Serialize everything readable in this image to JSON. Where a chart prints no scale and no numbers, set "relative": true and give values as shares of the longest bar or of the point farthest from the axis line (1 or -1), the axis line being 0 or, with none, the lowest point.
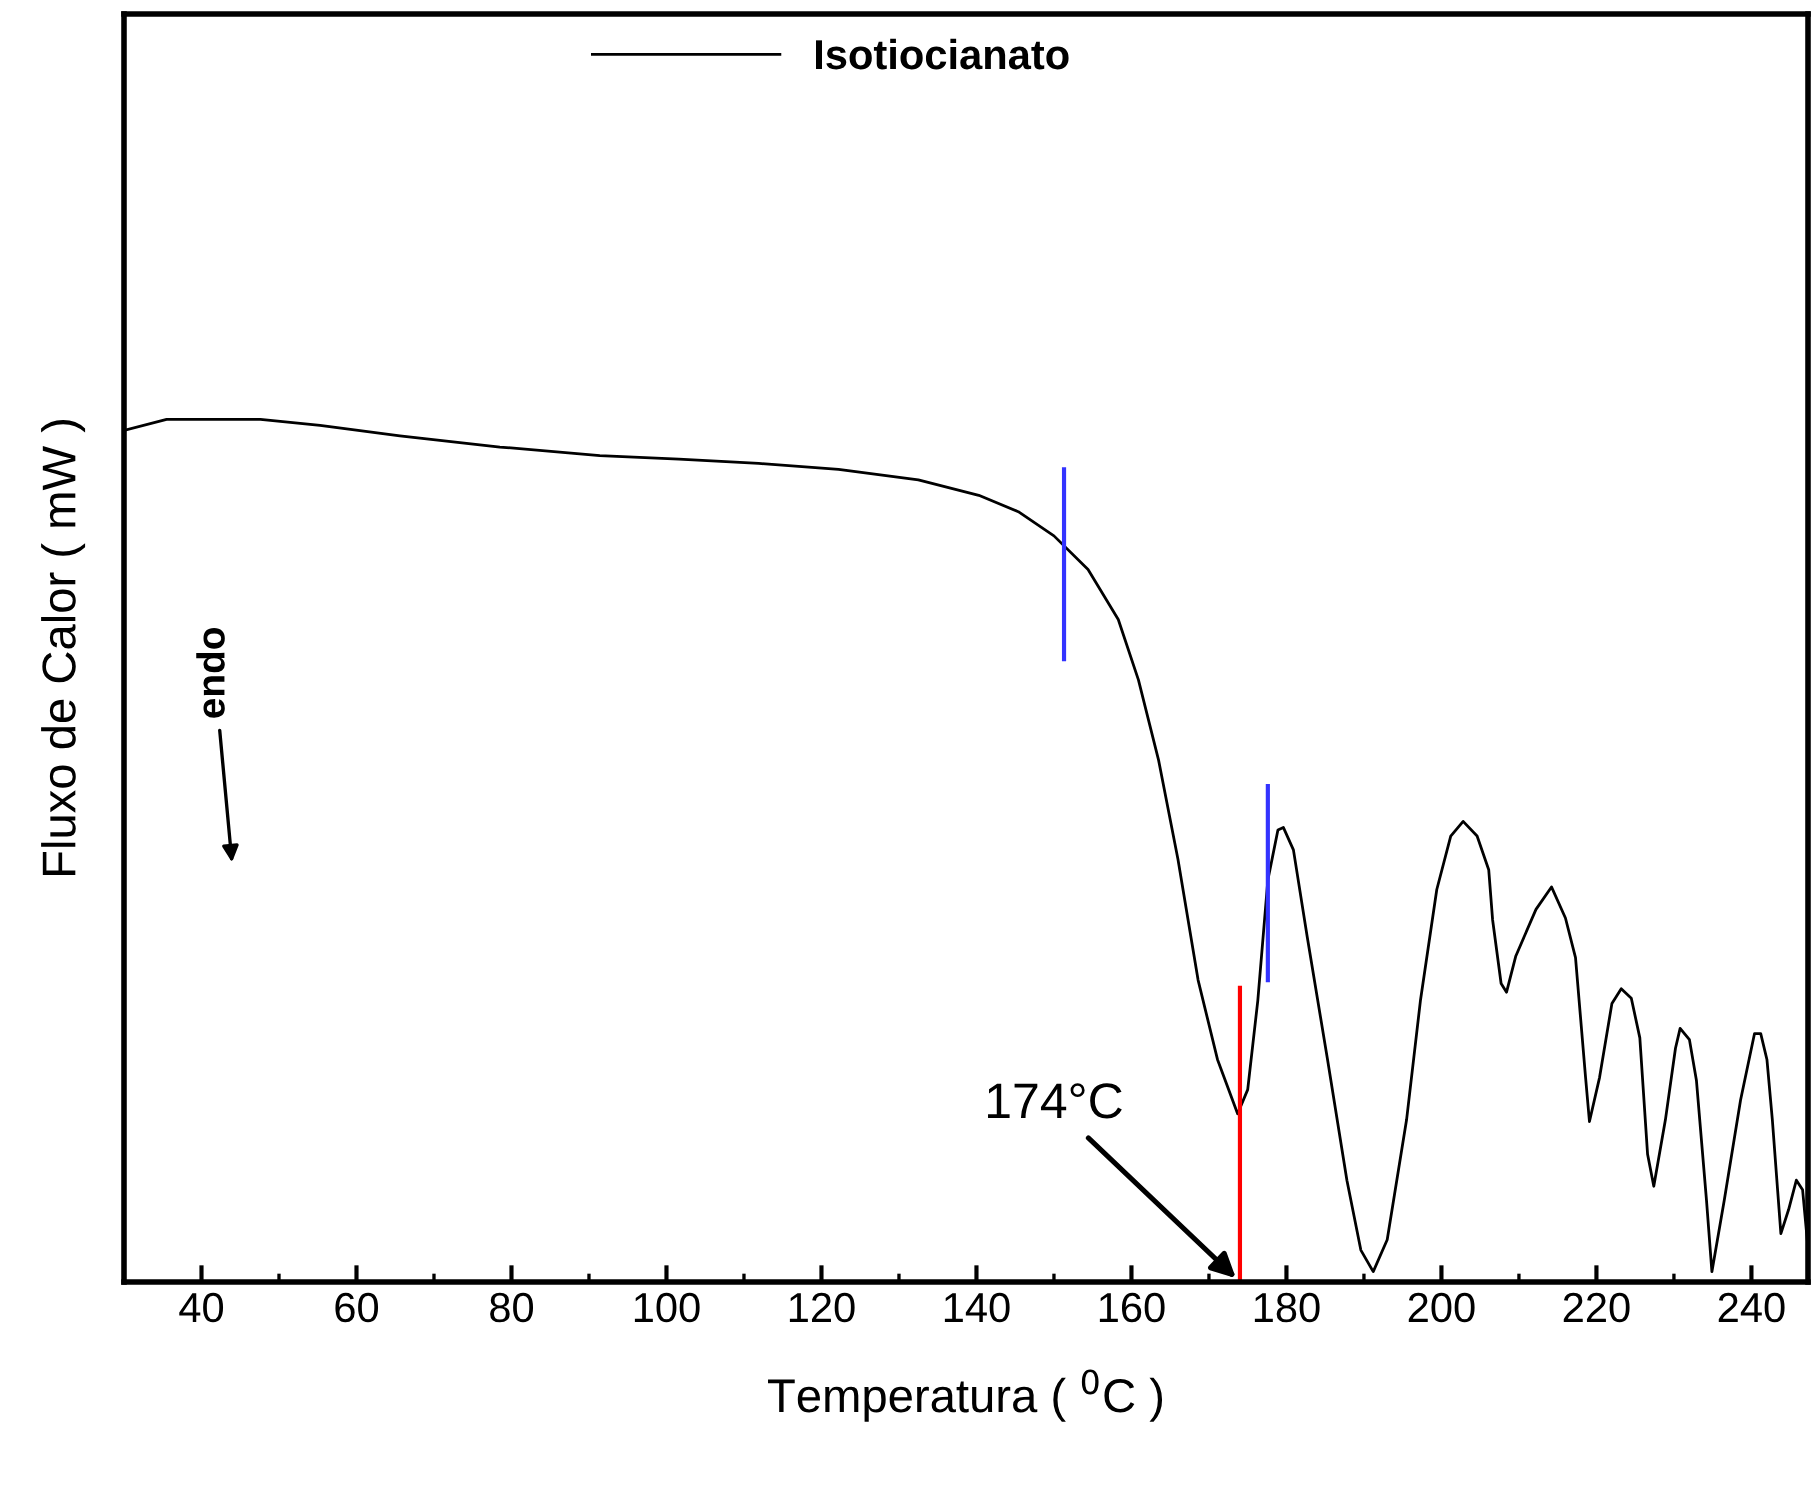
{
  "chart_data": {
    "type": "line",
    "relative": true,
    "xlabel": "Temperatura ( $^{0}$C )",
    "ylabel": "Fluxo de Calor ( mW )",
    "xlim": [
      30,
      247.3
    ],
    "xticks": [
      40,
      60,
      80,
      100,
      120,
      140,
      160,
      180,
      200,
      220,
      240
    ],
    "legend": "top",
    "grid": false,
    "tick_labels": "x",
    "marker": "none",
    "line_style": "solid",
    "annotations": [
      {
        "text": "174°C",
        "x": 174,
        "y": 0
      },
      "endo"
    ],
    "series": [
      {
        "name": "Isotiocianato",
        "color": "#000000",
        "x": [
          30.3,
          35.5,
          39.9,
          47.6,
          55.3,
          65.6,
          78.5,
          91.4,
          101.6,
          111.9,
          122.2,
          132.5,
          140.3,
          145.4,
          150.0,
          154.4,
          158.3,
          160.9,
          163.5,
          166.0,
          168.6,
          171.1,
          173.7,
          175.0,
          176.3,
          177.6,
          178.9,
          179.6,
          180.9,
          182.7,
          185.3,
          187.8,
          189.6,
          191.2,
          193.0,
          195.5,
          197.3,
          199.4,
          201.2,
          202.8,
          204.6,
          206.1,
          206.6,
          207.7,
          208.4,
          209.6,
          212.2,
          214.2,
          216.0,
          217.3,
          218.6,
          219.1,
          220.4,
          222.0,
          223.2,
          224.5,
          225.6,
          226.6,
          227.4,
          228.9,
          230.2,
          230.8,
          232.0,
          232.9,
          234.2,
          234.9,
          236.5,
          238.6,
          240.4,
          241.2,
          242.0,
          242.7,
          243.8,
          244.8,
          245.8,
          246.6,
          247.3
        ],
        "values": [
          0.988,
          1.0,
          1.0,
          1.0,
          0.993,
          0.981,
          0.968,
          0.958,
          0.954,
          0.949,
          0.942,
          0.93,
          0.912,
          0.893,
          0.865,
          0.826,
          0.768,
          0.698,
          0.605,
          0.49,
          0.35,
          0.258,
          0.195,
          0.223,
          0.326,
          0.466,
          0.524,
          0.527,
          0.501,
          0.399,
          0.258,
          0.118,
          0.037,
          0.012,
          0.049,
          0.188,
          0.327,
          0.455,
          0.517,
          0.534,
          0.517,
          0.478,
          0.42,
          0.346,
          0.336,
          0.378,
          0.432,
          0.458,
          0.422,
          0.376,
          0.237,
          0.186,
          0.237,
          0.323,
          0.34,
          0.329,
          0.283,
          0.148,
          0.111,
          0.188,
          0.271,
          0.294,
          0.281,
          0.234,
          0.095,
          0.012,
          0.095,
          0.211,
          0.288,
          0.288,
          0.258,
          0.188,
          0.056,
          0.084,
          0.118,
          0.107,
          0.039
        ]
      },
      {
        "color": "#3333ff",
        "x": [
          151.3,
          151.3
        ],
        "values": [
          0.942,
          0.722
        ]
      },
      {
        "color": "#3333ff",
        "x": [
          177.6,
          177.6
        ],
        "values": [
          0.575,
          0.35
        ]
      },
      {
        "color": "#ff0000",
        "x": [
          174,
          174
        ],
        "values": [
          0,
          0.341
        ]
      }
    ]
  }
}
